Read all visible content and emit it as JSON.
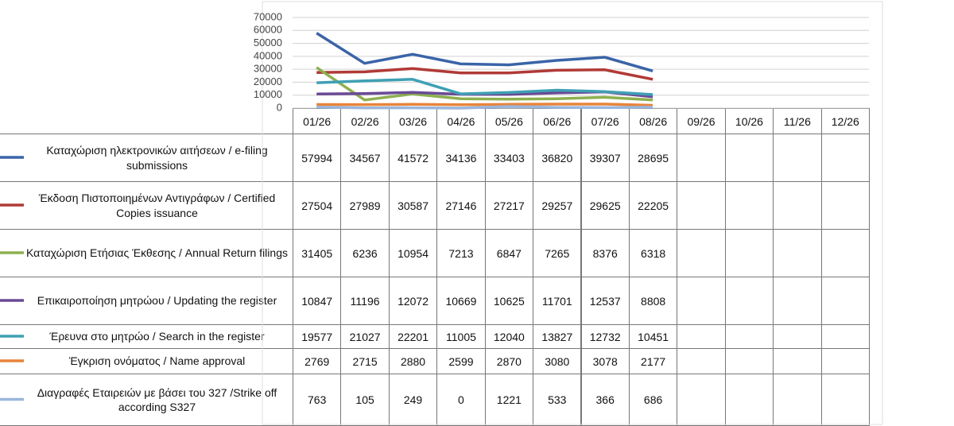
{
  "chart_data": {
    "type": "line",
    "categories": [
      "01/26",
      "02/26",
      "03/26",
      "04/26",
      "05/26",
      "06/26",
      "07/26",
      "08/26",
      "09/26",
      "10/26",
      "11/26",
      "12/26"
    ],
    "ylim": [
      0,
      70000
    ],
    "yticks": [
      0,
      10000,
      20000,
      30000,
      40000,
      50000,
      60000,
      70000
    ],
    "grid": true,
    "series": [
      {
        "name": "Καταχώριση ηλεκτρονικών αιτήσεων / e-filing submissions",
        "color": "#3a64a8",
        "values": [
          57994,
          34567,
          41572,
          34136,
          33403,
          36820,
          39307,
          28695,
          null,
          null,
          null,
          null
        ]
      },
      {
        "name": "Έκδοση Πιστοποιημένων Αντιγράφων / Certified Copies issuance",
        "color": "#b03a36",
        "values": [
          27504,
          27989,
          30587,
          27146,
          27217,
          29257,
          29625,
          22205,
          null,
          null,
          null,
          null
        ]
      },
      {
        "name": "Καταχώριση Ετήσιας Έκθεσης / Annual Return filings",
        "color": "#8db050",
        "values": [
          31405,
          6236,
          10954,
          7213,
          6847,
          7265,
          8376,
          6318,
          null,
          null,
          null,
          null
        ]
      },
      {
        "name": "Επικαιροποίηση μητρώου / Updating the register",
        "color": "#6a4a96",
        "values": [
          10847,
          11196,
          12072,
          10669,
          10625,
          11701,
          12537,
          8808,
          null,
          null,
          null,
          null
        ]
      },
      {
        "name": "Έρευνα στο μητρώο / Search in the register",
        "color": "#3fa0b4",
        "values": [
          19577,
          21027,
          22201,
          11005,
          12040,
          13827,
          12732,
          10451,
          null,
          null,
          null,
          null
        ]
      },
      {
        "name": "Έγκριση ονόματος / Name approval",
        "color": "#e8843a",
        "values": [
          2769,
          2715,
          2880,
          2599,
          2870,
          3080,
          3078,
          2177,
          null,
          null,
          null,
          null
        ]
      },
      {
        "name": "Διαγραφές Εταιρειών με βάσει του 327 /Strike off according S327",
        "color": "#9ab6dc",
        "values": [
          763,
          105,
          249,
          0,
          1221,
          533,
          366,
          686,
          null,
          null,
          null,
          null
        ]
      }
    ]
  }
}
